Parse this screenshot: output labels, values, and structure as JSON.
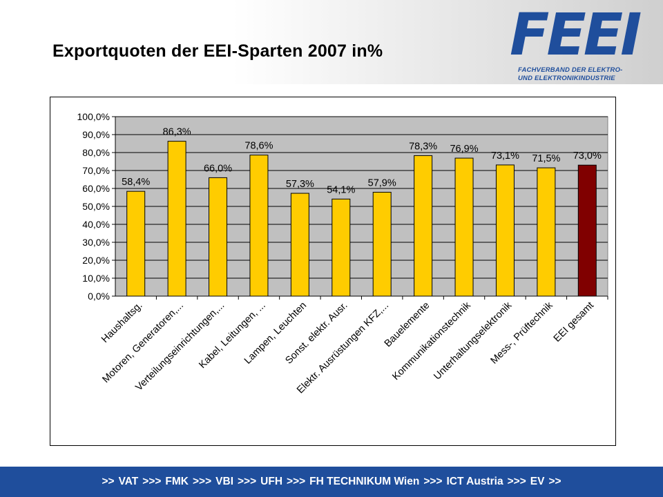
{
  "slide": {
    "title": "Exportquoten der EEI-Sparten 2007 in%"
  },
  "logo": {
    "mark": "FEEI",
    "line1": "FACHVERBAND DER ELEKTRO-",
    "line2": "UND ELEKTRONIKINDUSTRIE",
    "color": "#1f4e9c"
  },
  "footer": {
    "lead": ">>",
    "items": [
      "VAT",
      "FMK",
      "VBI",
      "UFH",
      "FH TECHNIKUM Wien",
      "ICT Austria",
      "EV"
    ],
    "separator": ">>>",
    "trail": ">>",
    "background": "#1f4e9c"
  },
  "chart_data": {
    "type": "bar",
    "title": "",
    "xlabel": "",
    "ylabel": "",
    "categories": [
      "Haushaltsg.",
      "Motoren, Generatoren,...",
      "Verteilungseinrichtungen,...",
      "Kabel, Leitungen, ...",
      "Lampen, Leuchten",
      "Sonst. elektr. Ausr.",
      "Elektr. Ausrüstungen KFZ,...",
      "Bauelemente",
      "Kommunikationstechnik",
      "Unterhaltungselektronik",
      "Mess-, Prüftechnik",
      "EEI gesamt"
    ],
    "values": [
      58.4,
      86.3,
      66.0,
      78.6,
      57.3,
      54.1,
      57.9,
      78.3,
      76.9,
      73.1,
      71.5,
      73.0
    ],
    "data_labels": [
      "58,4%",
      "86,3%",
      "66,0%",
      "78,6%",
      "57,3%",
      "54,1%",
      "57,9%",
      "78,3%",
      "76,9%",
      "73,1%",
      "71,5%",
      "73,0%"
    ],
    "y_ticks": [
      "0,0%",
      "10,0%",
      "20,0%",
      "30,0%",
      "40,0%",
      "50,0%",
      "60,0%",
      "70,0%",
      "80,0%",
      "90,0%",
      "100,0%"
    ],
    "ylim": [
      0,
      100
    ],
    "grid": true,
    "legend": "none",
    "colors": {
      "bar": "#ffcc00",
      "highlight_bar": "#800000",
      "plot_background": "#c0c0c0"
    },
    "highlight_index": 11
  }
}
